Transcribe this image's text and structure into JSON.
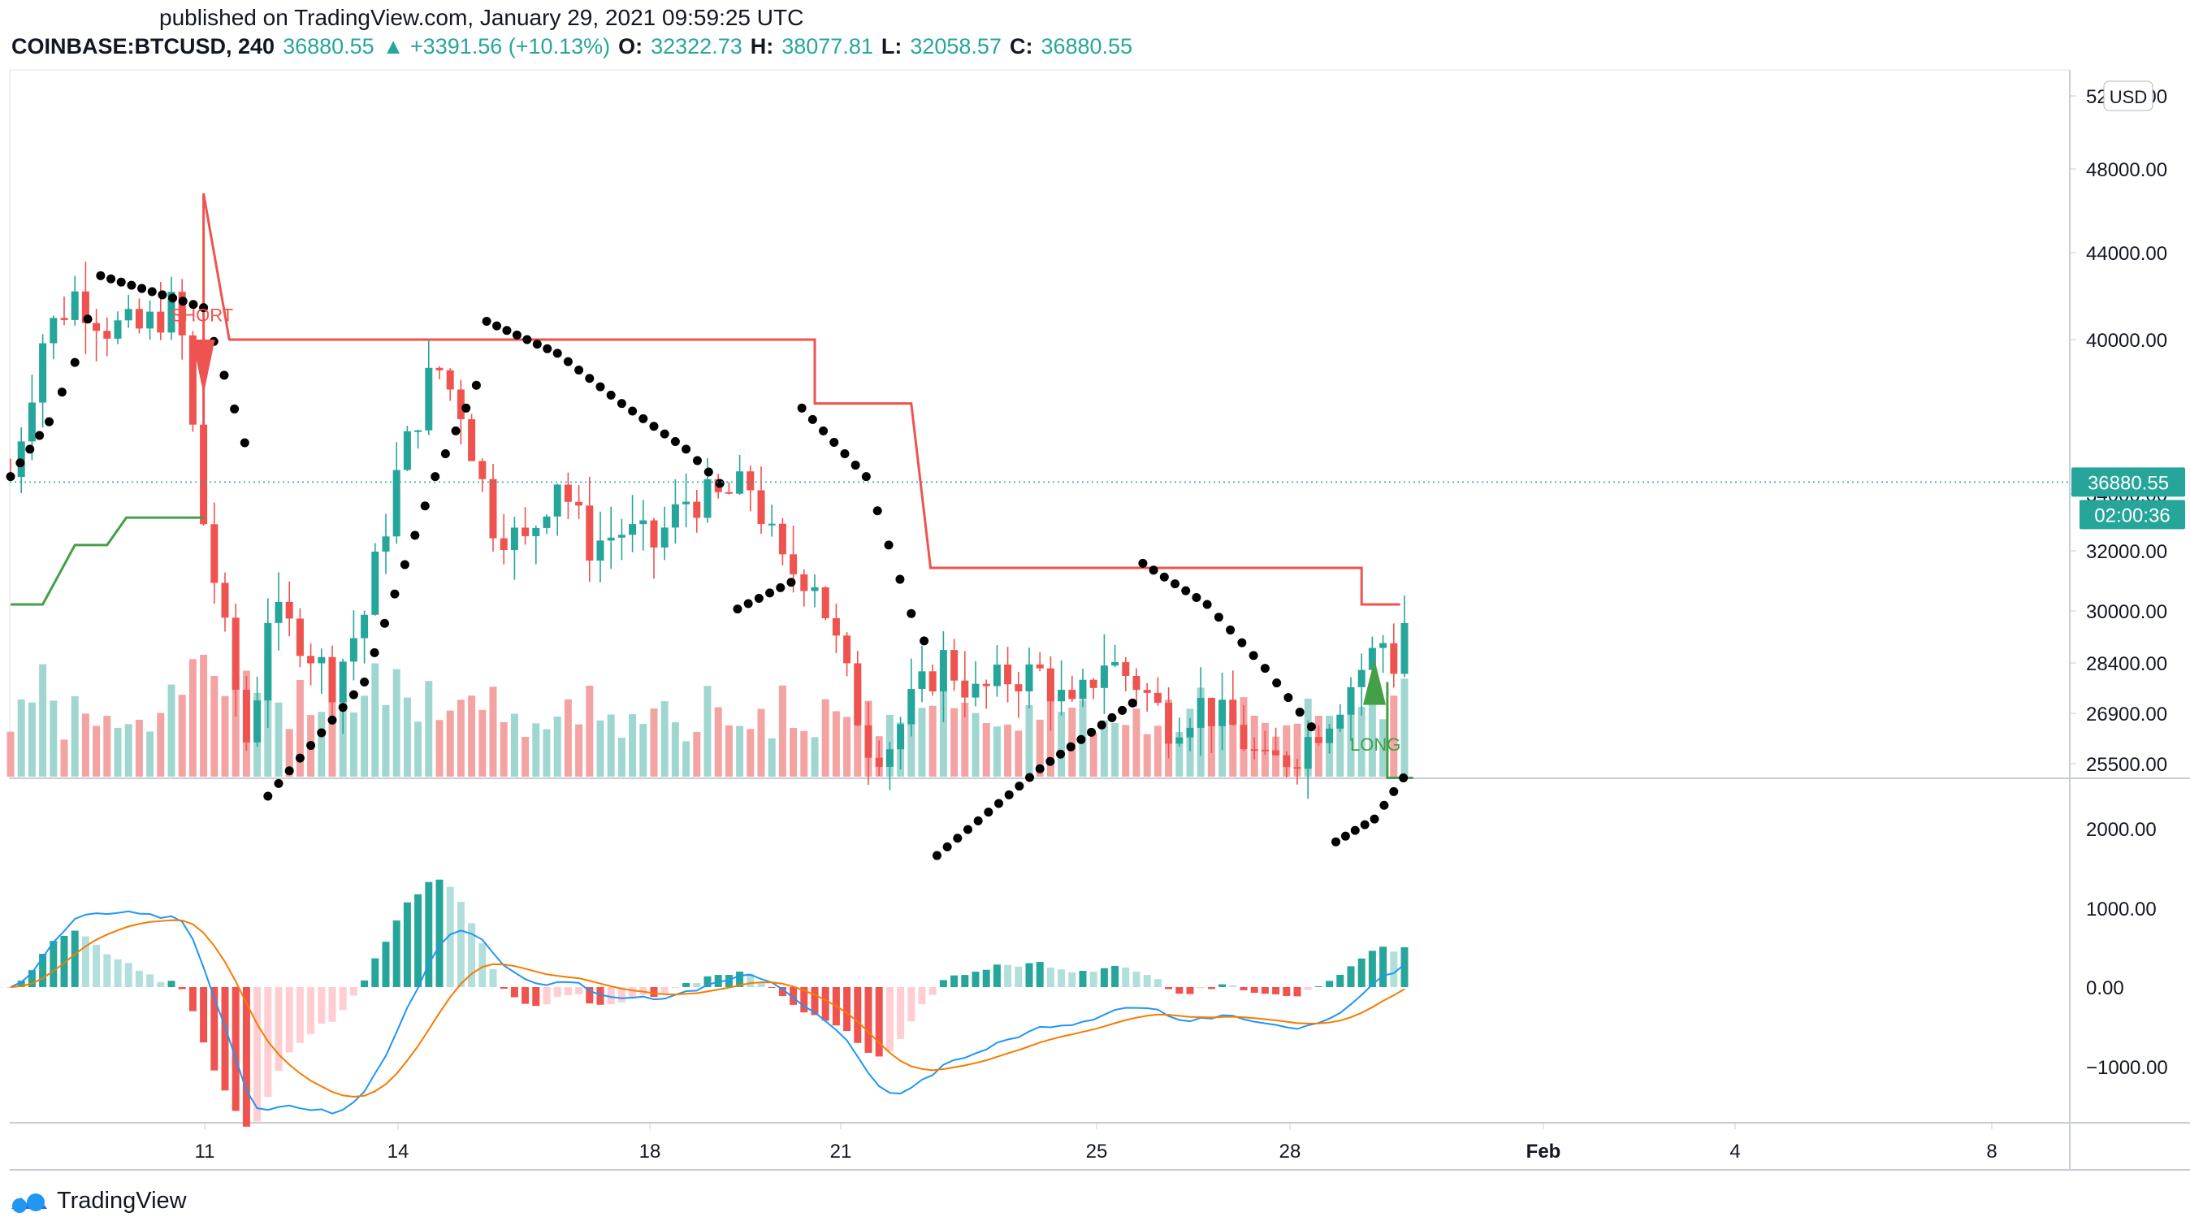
{
  "header": {
    "published": "published on TradingView.com, January 29, 2021 09:59:25 UTC",
    "symbol": "COINBASE:BTCUSD, 240",
    "last": "36880.55",
    "change": "▲ +3391.56 (+10.13%)",
    "o_label": "O:",
    "o_value": "32322.73",
    "h_label": "H:",
    "h_value": "38077.81",
    "l_label": "L:",
    "l_value": "32058.57",
    "c_label": "C:",
    "c_value": "36880.55"
  },
  "currency_badge": "USD",
  "brand": "TradingView",
  "colors": {
    "up": "#26a69a",
    "down": "#ef5350",
    "vol_up": "#9fd7d0",
    "vol_down": "#f4a3a3",
    "macd": "#2196f3",
    "signal": "#f57c00",
    "supertrend_down": "#ef5350",
    "supertrend_up": "#43a047",
    "price_line": "#26a69a"
  },
  "chart_data": {
    "type": "candlestick",
    "timeframe": "240",
    "y_axis_ticks": [
      "52000.00",
      "48000.00",
      "44000.00",
      "40000.00",
      "34000.00",
      "32000.00",
      "30000.00",
      "28400.00",
      "26900.00",
      "25500.00"
    ],
    "x_axis_ticks": [
      "11",
      "14",
      "18",
      "21",
      "25",
      "28",
      "Feb",
      "4",
      "8"
    ],
    "last_price_label": "36880.55",
    "countdown_label": "02:00:36",
    "signals": [
      {
        "label": "SHORT",
        "x_day": 11.0
      },
      {
        "label": "LONG",
        "x_day": 29.2
      }
    ],
    "close_path": [
      {
        "d": 8.0,
        "c": 37000
      },
      {
        "d": 8.5,
        "c": 40000
      },
      {
        "d": 9.0,
        "c": 41000
      },
      {
        "d": 9.5,
        "c": 40300
      },
      {
        "d": 10.0,
        "c": 40200
      },
      {
        "d": 10.6,
        "c": 40800
      },
      {
        "d": 11.0,
        "c": 36000
      },
      {
        "d": 11.4,
        "c": 33000
      },
      {
        "d": 11.7,
        "c": 31000
      },
      {
        "d": 12.0,
        "c": 34000
      },
      {
        "d": 12.5,
        "c": 33500
      },
      {
        "d": 13.0,
        "c": 32500
      },
      {
        "d": 13.5,
        "c": 34000
      },
      {
        "d": 14.0,
        "c": 37000
      },
      {
        "d": 14.6,
        "c": 39500
      },
      {
        "d": 15.0,
        "c": 38500
      },
      {
        "d": 15.5,
        "c": 36000
      },
      {
        "d": 16.0,
        "c": 35500
      },
      {
        "d": 16.5,
        "c": 37000
      },
      {
        "d": 17.0,
        "c": 35500
      },
      {
        "d": 17.5,
        "c": 35800
      },
      {
        "d": 18.0,
        "c": 35500
      },
      {
        "d": 18.5,
        "c": 36500
      },
      {
        "d": 19.0,
        "c": 36500
      },
      {
        "d": 19.5,
        "c": 36800
      },
      {
        "d": 20.0,
        "c": 35000
      },
      {
        "d": 20.5,
        "c": 34800
      },
      {
        "d": 20.9,
        "c": 33000
      },
      {
        "d": 21.3,
        "c": 31200
      },
      {
        "d": 21.6,
        "c": 31000
      },
      {
        "d": 22.0,
        "c": 32000
      },
      {
        "d": 22.5,
        "c": 33000
      },
      {
        "d": 23.0,
        "c": 32200
      },
      {
        "d": 23.5,
        "c": 32600
      },
      {
        "d": 24.0,
        "c": 32700
      },
      {
        "d": 24.5,
        "c": 31800
      },
      {
        "d": 25.0,
        "c": 33000
      },
      {
        "d": 25.5,
        "c": 32500
      },
      {
        "d": 26.0,
        "c": 31600
      },
      {
        "d": 26.5,
        "c": 32000
      },
      {
        "d": 27.0,
        "c": 31500
      },
      {
        "d": 27.5,
        "c": 30600
      },
      {
        "d": 28.0,
        "c": 31000
      },
      {
        "d": 28.5,
        "c": 31800
      },
      {
        "d": 29.0,
        "c": 32800
      },
      {
        "d": 29.4,
        "c": 33500
      },
      {
        "d": 29.6,
        "c": 32300
      },
      {
        "d": 29.8,
        "c": 36880
      }
    ],
    "macd_axis_ticks": [
      "2000.00",
      "1000.00",
      "0.00",
      "−1000.00"
    ]
  }
}
